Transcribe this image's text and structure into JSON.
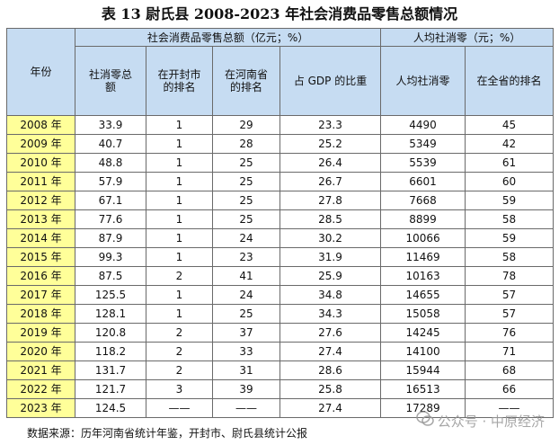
{
  "title": "表 13 尉氏县 2008-2023 年社会消费品零售总额情况",
  "header": {
    "year": "年份",
    "group1": "社会消费品零售总额（亿元；%）",
    "group2": "人均社消零（元；%）",
    "cols": [
      "社消零总额",
      "在开封市的排名",
      "在河南省的排名",
      "占 GDP 的比重",
      "人均社消零",
      "在全省的排名"
    ]
  },
  "rows": [
    {
      "year": "2008 年",
      "total": "33.9",
      "kaifeng": "1",
      "henan": "29",
      "gdp": "23.3",
      "percap": "4490",
      "prov": "45"
    },
    {
      "year": "2009 年",
      "total": "40.7",
      "kaifeng": "1",
      "henan": "28",
      "gdp": "25.2",
      "percap": "5349",
      "prov": "42"
    },
    {
      "year": "2010 年",
      "total": "48.8",
      "kaifeng": "1",
      "henan": "25",
      "gdp": "26.4",
      "percap": "5539",
      "prov": "61"
    },
    {
      "year": "2011 年",
      "total": "57.9",
      "kaifeng": "1",
      "henan": "25",
      "gdp": "26.7",
      "percap": "6601",
      "prov": "60"
    },
    {
      "year": "2012 年",
      "total": "67.1",
      "kaifeng": "1",
      "henan": "25",
      "gdp": "27.8",
      "percap": "7668",
      "prov": "59"
    },
    {
      "year": "2013 年",
      "total": "77.6",
      "kaifeng": "1",
      "henan": "25",
      "gdp": "28.5",
      "percap": "8899",
      "prov": "58"
    },
    {
      "year": "2014 年",
      "total": "87.9",
      "kaifeng": "1",
      "henan": "24",
      "gdp": "30.2",
      "percap": "10066",
      "prov": "59"
    },
    {
      "year": "2015 年",
      "total": "99.3",
      "kaifeng": "1",
      "henan": "23",
      "gdp": "31.9",
      "percap": "11469",
      "prov": "58"
    },
    {
      "year": "2016 年",
      "total": "87.5",
      "kaifeng": "2",
      "henan": "41",
      "gdp": "25.9",
      "percap": "10163",
      "prov": "78"
    },
    {
      "year": "2017 年",
      "total": "125.5",
      "kaifeng": "1",
      "henan": "24",
      "gdp": "34.8",
      "percap": "14655",
      "prov": "57"
    },
    {
      "year": "2018 年",
      "total": "128.1",
      "kaifeng": "1",
      "henan": "25",
      "gdp": "34.3",
      "percap": "15058",
      "prov": "57"
    },
    {
      "year": "2019 年",
      "total": "120.8",
      "kaifeng": "2",
      "henan": "37",
      "gdp": "27.6",
      "percap": "14245",
      "prov": "76"
    },
    {
      "year": "2020 年",
      "total": "118.2",
      "kaifeng": "2",
      "henan": "33",
      "gdp": "27.4",
      "percap": "14100",
      "prov": "71"
    },
    {
      "year": "2021 年",
      "total": "131.7",
      "kaifeng": "2",
      "henan": "31",
      "gdp": "28.6",
      "percap": "15944",
      "prov": "68"
    },
    {
      "year": "2022 年",
      "total": "121.7",
      "kaifeng": "3",
      "henan": "39",
      "gdp": "25.8",
      "percap": "16513",
      "prov": "66"
    },
    {
      "year": "2023 年",
      "total": "124.5",
      "kaifeng": "——",
      "henan": "——",
      "gdp": "27.4",
      "percap": "17289",
      "prov": "——"
    }
  ],
  "source": "数据来源：历年河南省统计年鉴，开封市、尉氏县统计公报",
  "watermark": "公众号 · 中原经济",
  "colors": {
    "header_bg": "#c6dcf2",
    "year_bg": "#ffff99",
    "border": "#6a6a6a"
  }
}
